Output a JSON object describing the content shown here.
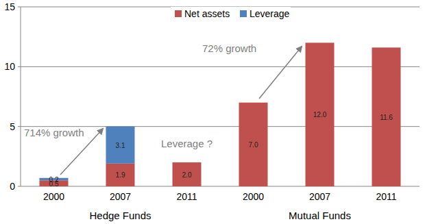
{
  "chart_data": {
    "type": "bar",
    "stacked": true,
    "grid": true,
    "legend": "top",
    "data_labels": true,
    "categories": [
      "2000",
      "2007",
      "2011",
      "2000",
      "2007",
      "2011"
    ],
    "groups": [
      "Hedge Funds",
      "Mutual Funds"
    ],
    "series": [
      {
        "name": "Net assets",
        "color": "#c0504d",
        "values": [
          0.5,
          1.9,
          2.0,
          7.0,
          12.0,
          11.6
        ],
        "value_labels": [
          "0.5",
          "1.9",
          "2.0",
          "7.0",
          "12.0",
          "11.6"
        ]
      },
      {
        "name": "Leverage",
        "color": "#4f81bd",
        "values": [
          0.2,
          3.1,
          null,
          null,
          null,
          null
        ],
        "value_labels": [
          "0.2",
          "3.1",
          null,
          null,
          null,
          null
        ]
      }
    ],
    "ylim": [
      0,
      15
    ],
    "yticks": [
      0,
      5,
      10,
      15
    ],
    "annotations": [
      "714% growth",
      "72% growth",
      "Leverage ?"
    ]
  }
}
